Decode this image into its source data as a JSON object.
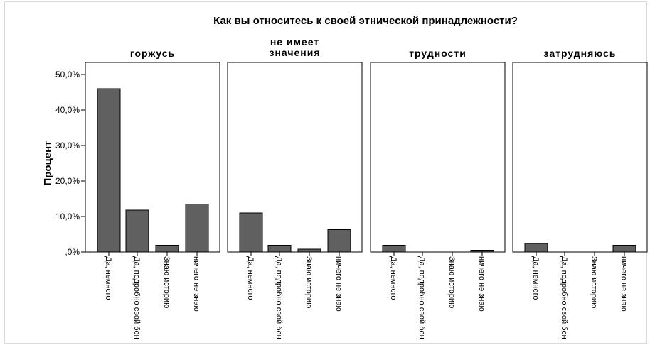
{
  "chart_data": {
    "type": "bar",
    "title": "Как вы относитесь к своей этнической принадлежности?",
    "ylabel": "Процент",
    "xlabel": "",
    "ylim": [
      0,
      50
    ],
    "ytick_labels": [
      ",0%",
      "10,0%",
      "20,0%",
      "30,0%",
      "40,0%",
      "50,0%"
    ],
    "yticks": [
      0,
      10,
      20,
      30,
      40,
      50
    ],
    "categories": [
      "Да, немного",
      "Да, подробно свой бон",
      "Знаю историю",
      "ничего не знаю"
    ],
    "bar_color": "#606060",
    "grid": false,
    "panels": [
      {
        "name": "горжусь",
        "title_lines": [
          "горжусь"
        ],
        "values": [
          46.0,
          11.8,
          1.9,
          13.5
        ]
      },
      {
        "name": "не имеет значения",
        "title_lines": [
          "не имеет",
          "значения"
        ],
        "values": [
          11.0,
          1.9,
          0.8,
          6.3
        ]
      },
      {
        "name": "трудности",
        "title_lines": [
          "трудности"
        ],
        "values": [
          1.9,
          0,
          0,
          0.5
        ]
      },
      {
        "name": "затрудняюсь",
        "title_lines": [
          "затрудняюсь"
        ],
        "values": [
          2.4,
          0,
          0,
          1.9
        ]
      }
    ]
  }
}
